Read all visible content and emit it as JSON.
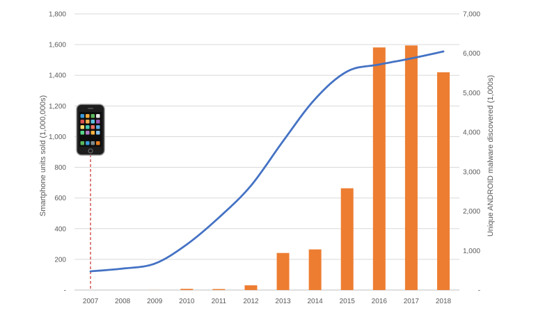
{
  "chart_data": {
    "type": "bar",
    "title": "",
    "categories": [
      "2007",
      "2008",
      "2009",
      "2010",
      "2011",
      "2012",
      "2013",
      "2014",
      "2015",
      "2016",
      "2017",
      "2018"
    ],
    "series": [
      {
        "name": "",
        "type": "line",
        "axis": "left",
        "color": "#4472C4",
        "values": [
          122,
          140,
          172,
          297,
          472,
          680,
          970,
          1245,
          1425,
          1470,
          1510,
          1555
        ]
      },
      {
        "name": "",
        "type": "bar",
        "axis": "right",
        "color": "#ED7D31",
        "values": [
          0,
          0,
          2,
          30,
          25,
          120,
          940,
          1030,
          2580,
          6150,
          6200,
          5520
        ]
      }
    ],
    "ylabel_left": "Smartphone units sold (1,000,000s)",
    "ylabel_right": "Unique ANDROID malware discovered (1,000s)",
    "ylim_left": [
      0,
      1800
    ],
    "ylim_right": [
      0,
      7000
    ],
    "yticks_left": [
      "-",
      "200",
      "400",
      "600",
      "800",
      "1,000",
      "1,200",
      "1,400",
      "1,600",
      "1,800"
    ],
    "yticks_right": [
      "-",
      "1,000",
      "2,000",
      "3,000",
      "4,000",
      "5,000",
      "6,000",
      "7,000"
    ],
    "grid": true,
    "legend": "none",
    "annotation": {
      "year": "2007",
      "marker": "dashed-vertical-line",
      "marker_color": "#C00000",
      "icon": "smartphone-icon"
    }
  }
}
